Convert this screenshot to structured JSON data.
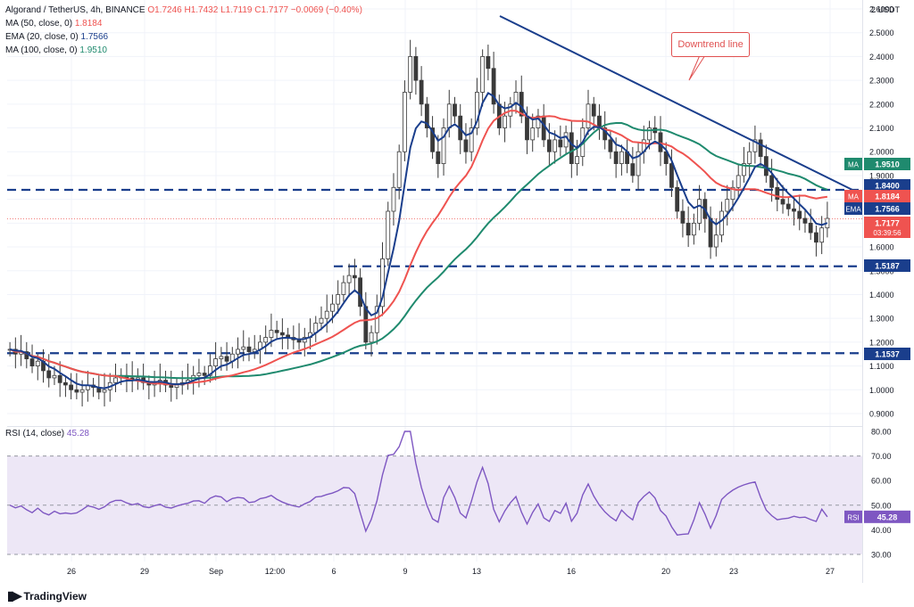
{
  "header": {
    "symbol": "Algorand / TetherUS, 4h, BINANCE",
    "ohlc": "O1.7246  H1.7432  L1.7119  C1.7177  −0.0069 (−0.40%)",
    "ma50_label": "MA (50, close, 0)",
    "ma50_value": "1.8184",
    "ema20_label": "EMA (20, close, 0)",
    "ema20_value": "1.7566",
    "ma100_label": "MA (100, close, 0)",
    "ma100_value": "1.9510",
    "rsi_label": "RSI (14, close)",
    "rsi_value": "45.28"
  },
  "annotation": "Downtrend line",
  "brand": "TradingView",
  "colors": {
    "up": "#26a69a",
    "down": "#ef5350",
    "candle": "#3a3a3a",
    "ema20": "#1a3e8c",
    "ma50": "#ef5350",
    "ma100": "#1f8a6e",
    "rsi": "#7e57c2",
    "rsi_band": "#ede7f6",
    "level": "#1a3e8c"
  },
  "chart_data": {
    "type": "candlestick",
    "currency": "USDT",
    "price_ticks": [
      "2.6000",
      "2.5000",
      "2.4000",
      "2.3000",
      "2.2000",
      "2.1000",
      "2.0000",
      "1.9000",
      "1.8000",
      "1.7000",
      "1.6000",
      "1.5000",
      "1.4000",
      "1.3000",
      "1.2000",
      "1.1000",
      "1.0000",
      "0.9000"
    ],
    "x_ticks": [
      "26",
      "29",
      "Sep",
      "12:00",
      "6",
      "9",
      "13",
      "16",
      "20",
      "23",
      "27"
    ],
    "price_labels": [
      {
        "text": "1.9510",
        "kind": "MA",
        "color": "#1f8a6e"
      },
      {
        "text": "1.8400",
        "kind": "",
        "color": "#1a3e8c"
      },
      {
        "text": "1.8184",
        "kind": "MA",
        "color": "#ef5350"
      },
      {
        "text": "1.7566",
        "kind": "EMA",
        "color": "#1a3e8c"
      },
      {
        "text": "1.7177",
        "sub": "03:39:56",
        "kind": "",
        "color": "#ef5350"
      },
      {
        "text": "1.5187",
        "kind": "",
        "color": "#1a3e8c"
      },
      {
        "text": "1.1537",
        "kind": "",
        "color": "#1a3e8c"
      }
    ],
    "horizontal_levels": [
      1.84,
      1.5187,
      1.1537
    ],
    "trendline": [
      [
        13,
        2.57
      ],
      [
        27.3,
        1.84
      ]
    ],
    "x_range": [
      24.2,
      27.8
    ],
    "ohlc_close": [
      1.17,
      1.15,
      1.16,
      1.13,
      1.1,
      1.12,
      1.08,
      1.05,
      1.06,
      1.03,
      1.02,
      1.0,
      0.99,
      1.0,
      1.02,
      1.01,
      0.99,
      1.0,
      1.03,
      1.05,
      1.06,
      1.05,
      1.04,
      1.05,
      1.03,
      1.02,
      1.03,
      1.04,
      1.02,
      1.01,
      1.02,
      1.03,
      1.04,
      1.06,
      1.07,
      1.06,
      1.1,
      1.13,
      1.14,
      1.12,
      1.15,
      1.17,
      1.18,
      1.16,
      1.17,
      1.2,
      1.22,
      1.25,
      1.24,
      1.23,
      1.22,
      1.21,
      1.2,
      1.22,
      1.24,
      1.28,
      1.3,
      1.33,
      1.36,
      1.4,
      1.45,
      1.48,
      1.47,
      1.35,
      1.2,
      1.24,
      1.35,
      1.55,
      1.75,
      1.85,
      2.0,
      2.25,
      2.4,
      2.3,
      2.2,
      2.1,
      2.0,
      1.95,
      2.1,
      2.2,
      2.15,
      2.05,
      2.0,
      2.1,
      2.25,
      2.4,
      2.35,
      2.2,
      2.1,
      2.15,
      2.2,
      2.25,
      2.15,
      2.05,
      2.1,
      2.15,
      2.05,
      2.0,
      2.05,
      2.02,
      2.08,
      1.95,
      1.98,
      2.1,
      2.2,
      2.15,
      2.1,
      2.05,
      2.0,
      1.95,
      2.0,
      1.95,
      1.9,
      2.0,
      2.05,
      2.1,
      2.08,
      2.0,
      1.95,
      1.85,
      1.75,
      1.7,
      1.65,
      1.7,
      1.8,
      1.72,
      1.6,
      1.65,
      1.75,
      1.8,
      1.85,
      1.9,
      1.95,
      2.0,
      2.05,
      1.98,
      1.9,
      1.85,
      1.8,
      1.78,
      1.76,
      1.75,
      1.72,
      1.7,
      1.66,
      1.62,
      1.68,
      1.72
    ],
    "rsi": {
      "ticks": [
        "80.00",
        "70.00",
        "60.00",
        "50.00",
        "40.00",
        "30.00"
      ],
      "upper": 70,
      "lower": 30,
      "last": 45.28
    }
  }
}
